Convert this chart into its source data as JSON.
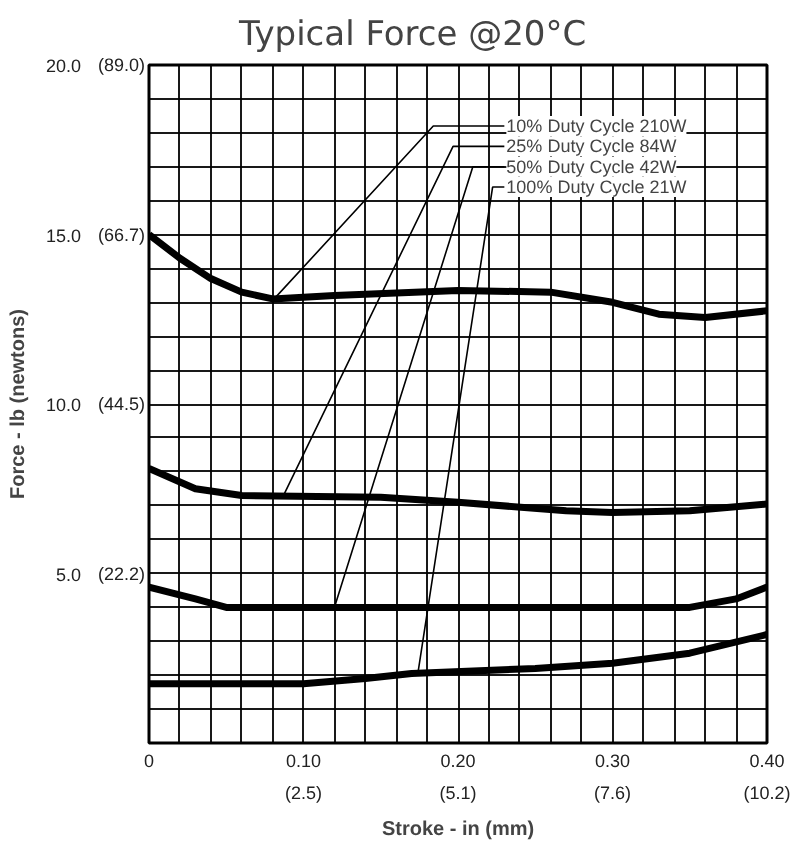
{
  "chart_data": {
    "type": "line",
    "title": "Typical Force @20°C",
    "xlabel": "Stroke - in (mm)",
    "ylabel": "Force - lb (newtons)",
    "xlim": [
      0,
      0.4
    ],
    "ylim": [
      0,
      20
    ],
    "xticks": [
      {
        "value": 0,
        "label": "0"
      },
      {
        "value": 0.02,
        "label": null
      },
      {
        "value": 0.04,
        "label": null
      },
      {
        "value": 0.06,
        "label": null
      },
      {
        "value": 0.08,
        "label": null
      },
      {
        "value": 0.1,
        "label": "0.10"
      },
      {
        "value": 0.12,
        "label": null
      },
      {
        "value": 0.14,
        "label": null
      },
      {
        "value": 0.16,
        "label": null
      },
      {
        "value": 0.18,
        "label": null
      },
      {
        "value": 0.2,
        "label": "0.20"
      },
      {
        "value": 0.22,
        "label": null
      },
      {
        "value": 0.24,
        "label": null
      },
      {
        "value": 0.26,
        "label": null
      },
      {
        "value": 0.28,
        "label": null
      },
      {
        "value": 0.3,
        "label": "0.30"
      },
      {
        "value": 0.32,
        "label": null
      },
      {
        "value": 0.34,
        "label": null
      },
      {
        "value": 0.36,
        "label": null
      },
      {
        "value": 0.38,
        "label": null
      },
      {
        "value": 0.4,
        "label": "0.40"
      }
    ],
    "x2lim": [
      0,
      10.16
    ],
    "x2ticks": [
      {
        "value": 2.54,
        "label": "(2.5)"
      },
      {
        "value": 5.08,
        "label": "(5.1)"
      },
      {
        "value": 7.62,
        "label": "(7.6)"
      },
      {
        "value": 10.16,
        "label": "(10.2)"
      }
    ],
    "y2lim": [
      0,
      88.96
    ],
    "y2ticks": [
      {
        "value": 22.24,
        "label": "(22.2)"
      },
      {
        "value": 44.48,
        "label": "(44.5)"
      },
      {
        "value": 66.72,
        "label": "(66.7)"
      },
      {
        "value": 88.96,
        "label": "(89.0)"
      }
    ],
    "yticks": [
      {
        "value": 0,
        "label": null
      },
      {
        "value": 1,
        "label": null
      },
      {
        "value": 2,
        "label": null
      },
      {
        "value": 3,
        "label": null
      },
      {
        "value": 4,
        "label": null
      },
      {
        "value": 5,
        "label": "5.0"
      },
      {
        "value": 6,
        "label": null
      },
      {
        "value": 7,
        "label": null
      },
      {
        "value": 8,
        "label": null
      },
      {
        "value": 9,
        "label": null
      },
      {
        "value": 10,
        "label": "10.0"
      },
      {
        "value": 11,
        "label": null
      },
      {
        "value": 12,
        "label": null
      },
      {
        "value": 13,
        "label": null
      },
      {
        "value": 14,
        "label": null
      },
      {
        "value": 15,
        "label": "15.0"
      },
      {
        "value": 16,
        "label": null
      },
      {
        "value": 17,
        "label": null
      },
      {
        "value": 18,
        "label": null
      },
      {
        "value": 19,
        "label": null
      },
      {
        "value": 20,
        "label": "20.0"
      }
    ],
    "grid": true,
    "marker": "none",
    "line_style": "solid",
    "series": [
      {
        "color": "#000000",
        "x": [
          0,
          0.02,
          0.04,
          0.06,
          0.08,
          0.12,
          0.2,
          0.26,
          0.3,
          0.33,
          0.36,
          0.4
        ],
        "values": [
          15.0,
          14.3,
          13.7,
          13.3,
          13.1,
          13.2,
          13.35,
          13.3,
          13.0,
          12.65,
          12.55,
          12.75
        ]
      },
      {
        "color": "#000000",
        "x": [
          0,
          0.03,
          0.06,
          0.15,
          0.2,
          0.27,
          0.3,
          0.35,
          0.4
        ],
        "values": [
          8.1,
          7.5,
          7.3,
          7.25,
          7.1,
          6.85,
          6.8,
          6.85,
          7.05
        ]
      },
      {
        "color": "#000000",
        "x": [
          0,
          0.03,
          0.05,
          0.35,
          0.38,
          0.4
        ],
        "values": [
          4.6,
          4.25,
          4.0,
          4.0,
          4.25,
          4.6
        ]
      },
      {
        "color": "#000000",
        "x": [
          0,
          0.1,
          0.14,
          0.17,
          0.25,
          0.3,
          0.35,
          0.4
        ],
        "values": [
          1.75,
          1.75,
          1.9,
          2.05,
          2.2,
          2.35,
          2.65,
          3.2
        ]
      }
    ],
    "annotations": [
      {
        "text": "10% Duty Cycle 210W",
        "x": 0.081,
        "y": 13.1
      },
      {
        "text": "25% Duty Cycle 84W",
        "x": 0.087,
        "y": 7.3
      },
      {
        "text": "50% Duty Cycle 42W",
        "x": 0.12,
        "y": 4.0
      },
      {
        "text": "100% Duty Cycle 21W",
        "x": 0.174,
        "y": 2.05
      }
    ]
  }
}
